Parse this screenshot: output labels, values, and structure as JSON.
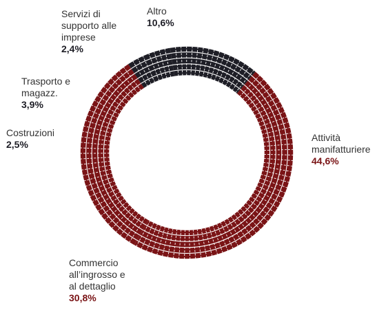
{
  "chart_data": {
    "type": "pie",
    "style": "donut",
    "title": "",
    "slices": [
      {
        "label": "Altro",
        "value": 10.6,
        "display": "10,6%",
        "color": "#1e1e26"
      },
      {
        "label": "Attività manifatturiere",
        "value": 44.6,
        "display": "44,6%",
        "color": "#7a1416"
      },
      {
        "label": "Commercio all’ingrosso e al dettaglio",
        "value": 30.8,
        "display": "30,8%",
        "color": "#7a1416"
      },
      {
        "label": "Costruzioni",
        "value": 2.5,
        "display": "2,5%",
        "color": "#1e1e26"
      },
      {
        "label": "Trasporto e magazz.",
        "value": 3.9,
        "display": "3,9%",
        "color": "#1e1e26"
      },
      {
        "label": "Servizi di supporto alle imprese",
        "value": 2.4,
        "display": "2,4%",
        "color": "#1e1e26"
      }
    ],
    "labels": {
      "altro": {
        "name": "Altro",
        "value": "10,6%"
      },
      "manifatturiere": {
        "name": "Attività\nmanifatturiere",
        "value": "44,6%"
      },
      "commercio": {
        "name": "Commercio\nall’ingrosso e\nal dettaglio",
        "value": "30,8%"
      },
      "costruzioni": {
        "name": "Costruzioni",
        "value": "2,5%"
      },
      "trasporto": {
        "name": "Trasporto e\nmagazz.",
        "value": "3,9%"
      },
      "servizi": {
        "name": "Servizi di\nsupporto alle\nimprese",
        "value": "2,4%"
      }
    }
  }
}
